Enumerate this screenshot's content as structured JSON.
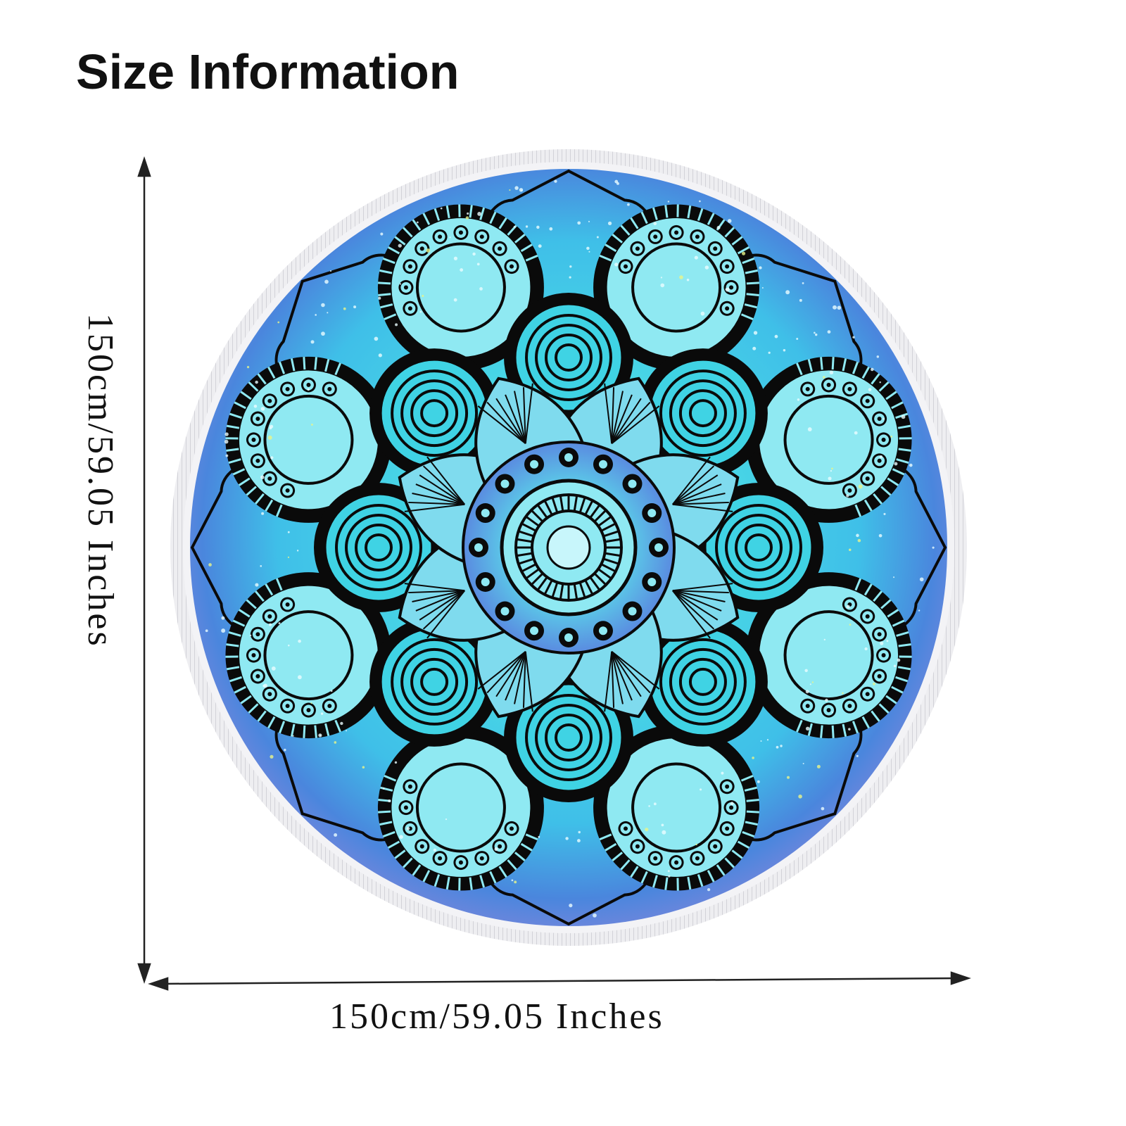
{
  "title": "Size Information",
  "dimensions": {
    "width_label": "150cm/59.05 Inches",
    "height_label": "150cm/59.05 Inches"
  },
  "colors": {
    "turquoise": "#3fd3e4",
    "aqua": "#8fe9f2",
    "blue": "#3f8fe0",
    "violet": "#8a8ee0",
    "outline": "#0a0a0a",
    "fringe": "#e4e4e8"
  }
}
